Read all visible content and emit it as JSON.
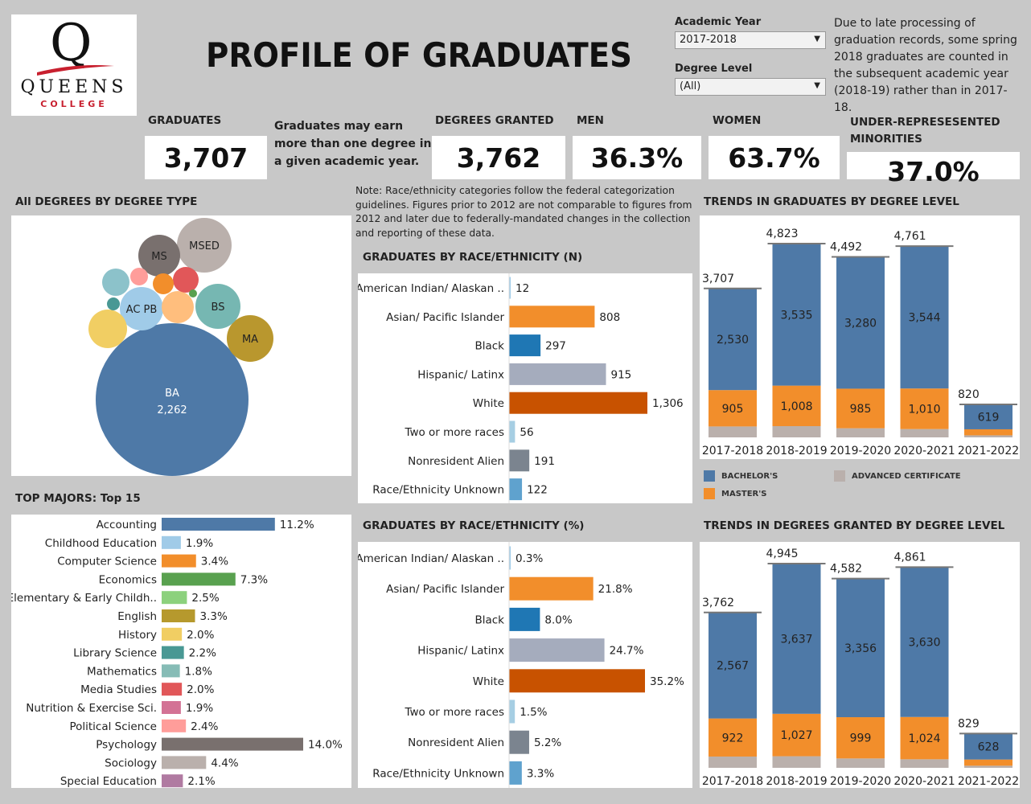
{
  "header": {
    "logo": {
      "letter": "Q",
      "name": "QUEENS",
      "sub": "COLLEGE"
    },
    "title": "PROFILE OF GRADUATES"
  },
  "filters": {
    "academic_year": {
      "label": "Academic Year",
      "value": "2017-2018"
    },
    "degree_level": {
      "label": "Degree Level",
      "value": "(All)"
    }
  },
  "notes": {
    "late_processing": "Due to late processing of graduation records, some spring 2018 graduates are counted in the subsequent academic year (2018-19) rather than in 2017-18.",
    "multiple_degrees": "Graduates may earn more than one degree in a given academic year.",
    "race_categories": "Note: Race/ethnicity categories follow the federal categorization guidelines. Figures prior to 2012 are not comparable to figures from 2012 and later due to federally-mandated changes in the  collection and reporting of these data."
  },
  "kpis": {
    "graduates": {
      "label": "GRADUATES",
      "value": "3,707"
    },
    "degrees_granted": {
      "label": "DEGREES GRANTED",
      "value": "3,762"
    },
    "men": {
      "label": "MEN",
      "value": "36.3%"
    },
    "women": {
      "label": "WOMEN",
      "value": "63.7%"
    },
    "urm": {
      "label": "UNDER-REPRESESENTED MINORITIES",
      "value": "37.0%"
    }
  },
  "colors": {
    "bachelors": "#4e79a7",
    "masters": "#f28e2b",
    "advanced_certificate": "#bab0ac",
    "race": [
      "#a0cbe8",
      "#f28e2b",
      "#1f77b4",
      "#a5acbd",
      "#c85200",
      "#a6cee3",
      "#7b848f",
      "#5fa2ce"
    ]
  },
  "chart_data": [
    {
      "id": "degree_type",
      "type": "bubble",
      "title": "All DEGREES BY DEGREE TYPE",
      "bubbles": [
        {
          "label": "BA",
          "value": 2262,
          "value_label": "2,262",
          "color": "#4e79a7"
        },
        {
          "label": "MA",
          "value": "",
          "color": "#b9972e"
        },
        {
          "label": "MSED",
          "value": "",
          "color": "#bab0ac"
        },
        {
          "label": "MS",
          "value": "",
          "color": "#79706e"
        },
        {
          "label": "BS",
          "value": "",
          "color": "#76b7b2"
        },
        {
          "label": "AC PB",
          "value": "",
          "color": "#a0cbe8"
        },
        {
          "label": "",
          "value": "",
          "color": "#f1ce63"
        },
        {
          "label": "",
          "value": "",
          "color": "#ffbe7d"
        },
        {
          "label": "",
          "value": "",
          "color": "#e15759"
        },
        {
          "label": "",
          "value": "",
          "color": "#8cc2ca"
        },
        {
          "label": "",
          "value": "",
          "color": "#f28e2b"
        },
        {
          "label": "",
          "value": "",
          "color": "#ff9d9a"
        },
        {
          "label": "",
          "value": "",
          "color": "#499894"
        },
        {
          "label": "",
          "value": "",
          "color": "#59a14f"
        }
      ]
    },
    {
      "id": "race_n",
      "type": "bar",
      "orientation": "horizontal",
      "title": "GRADUATES BY RACE/ETHNICITY (N)",
      "categories": [
        "American Indian/ Alaskan ..",
        "Asian/ Pacific Islander",
        "Black",
        "Hispanic/ Latinx",
        "White",
        "Two or more races",
        "Nonresident Alien",
        "Race/Ethnicity Unknown"
      ],
      "values": [
        12,
        808,
        297,
        915,
        1306,
        56,
        191,
        122
      ],
      "labels": [
        "12",
        "808",
        "297",
        "915",
        "1,306",
        "56",
        "191",
        "122"
      ]
    },
    {
      "id": "race_pct",
      "type": "bar",
      "orientation": "horizontal",
      "title": "GRADUATES BY RACE/ETHNICITY (%)",
      "categories": [
        "American Indian/ Alaskan ..",
        "Asian/ Pacific Islander",
        "Black",
        "Hispanic/ Latinx",
        "White",
        "Two or more races",
        "Nonresident Alien",
        "Race/Ethnicity Unknown"
      ],
      "values": [
        0.3,
        21.8,
        8.0,
        24.7,
        35.2,
        1.5,
        5.2,
        3.3
      ],
      "labels": [
        "0.3%",
        "21.8%",
        "8.0%",
        "24.7%",
        "35.2%",
        "1.5%",
        "5.2%",
        "3.3%"
      ]
    },
    {
      "id": "top_majors",
      "type": "bar",
      "orientation": "horizontal",
      "title": "TOP MAJORS: Top 15",
      "categories": [
        "Accounting",
        "Childhood Education",
        "Computer Science",
        "Economics",
        "Elementary & Early Childh..",
        "English",
        "History",
        "Library Science",
        "Mathematics",
        "Media Studies",
        "Nutrition & Exercise Sci.",
        "Political Science",
        "Psychology",
        "Sociology",
        "Special Education"
      ],
      "values": [
        11.2,
        1.9,
        3.4,
        7.3,
        2.5,
        3.3,
        2.0,
        2.2,
        1.8,
        2.0,
        1.9,
        2.4,
        14.0,
        4.4,
        2.1
      ],
      "labels": [
        "11.2%",
        "1.9%",
        "3.4%",
        "7.3%",
        "2.5%",
        "3.3%",
        "2.0%",
        "2.2%",
        "1.8%",
        "2.0%",
        "1.9%",
        "2.4%",
        "14.0%",
        "4.4%",
        "2.1%"
      ],
      "colors": [
        "#4e79a7",
        "#a0cbe8",
        "#f28e2b",
        "#59a14f",
        "#8cd17d",
        "#b6992d",
        "#f1ce63",
        "#499894",
        "#86bcb6",
        "#e15759",
        "#d37295",
        "#ff9d9a",
        "#79706e",
        "#bab0ac",
        "#b07aa1"
      ]
    },
    {
      "id": "trend_graduates",
      "type": "bar",
      "stacked": true,
      "title": "TRENDS IN GRADUATES BY DEGREE LEVEL",
      "categories": [
        "2017-2018",
        "2018-2019",
        "2019-2020",
        "2020-2021",
        "2021-2022"
      ],
      "totals": [
        3707,
        4823,
        4492,
        4761,
        820
      ],
      "total_labels": [
        "3,707",
        "4,823",
        "4,492",
        "4,761",
        "820"
      ],
      "series": [
        {
          "name": "BACHELOR'S",
          "values": [
            2530,
            3535,
            3280,
            3544,
            619
          ],
          "labels": [
            "2,530",
            "3,535",
            "3,280",
            "3,544",
            "619"
          ]
        },
        {
          "name": "MASTER'S",
          "values": [
            905,
            1008,
            985,
            1010,
            150
          ],
          "labels": [
            "905",
            "1,008",
            "985",
            "1,010",
            ""
          ]
        },
        {
          "name": "ADVANCED CERTIFICATE",
          "values": [
            272,
            280,
            227,
            207,
            51
          ],
          "labels": [
            "",
            "",
            "",
            "",
            ""
          ]
        }
      ],
      "legend": "bottom"
    },
    {
      "id": "trend_degrees",
      "type": "bar",
      "stacked": true,
      "title": "TRENDS IN DEGREES GRANTED BY DEGREE LEVEL",
      "categories": [
        "2017-2018",
        "2018-2019",
        "2019-2020",
        "2020-2021",
        "2021-2022"
      ],
      "totals": [
        3762,
        4945,
        4582,
        4861,
        829
      ],
      "total_labels": [
        "3,762",
        "4,945",
        "4,582",
        "4,861",
        "829"
      ],
      "series": [
        {
          "name": "BACHELOR'S",
          "values": [
            2567,
            3637,
            3356,
            3630,
            628
          ],
          "labels": [
            "2,567",
            "3,637",
            "3,356",
            "3,630",
            "628"
          ]
        },
        {
          "name": "MASTER'S",
          "values": [
            922,
            1027,
            999,
            1024,
            150
          ],
          "labels": [
            "922",
            "1,027",
            "999",
            "1,024",
            ""
          ]
        },
        {
          "name": "ADVANCED CERTIFICATE",
          "values": [
            273,
            281,
            227,
            207,
            51
          ],
          "labels": [
            "",
            "",
            "",
            "",
            ""
          ]
        }
      ]
    }
  ]
}
